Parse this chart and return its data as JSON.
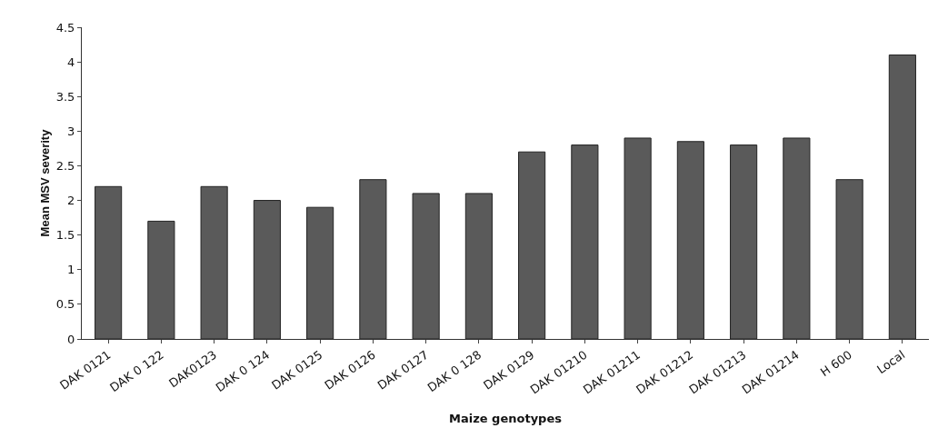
{
  "chart_data": {
    "type": "bar",
    "xlabel": "Maize genotypes",
    "ylabel": "Mean MSV severity",
    "categories": [
      "DAK 0121",
      "DAK 0 122",
      "DAK0123",
      "DAK 0 124",
      "DAK 0125",
      "DAK 0126",
      "DAK 0127",
      "DAK 0 128",
      "DAK 0129",
      "DAK 01210",
      "DAK 01211",
      "DAK 01212",
      "DAK 01213",
      "DAK 01214",
      "H 600",
      "Local"
    ],
    "values": [
      2.2,
      1.7,
      2.2,
      2.0,
      1.9,
      2.3,
      2.1,
      2.1,
      2.7,
      2.8,
      2.9,
      2.85,
      2.8,
      2.9,
      2.3,
      4.1
    ],
    "color": "#5a5a5a",
    "ylim": [
      0,
      4.5
    ],
    "yticks": [
      0,
      0.5,
      1,
      1.5,
      2,
      2.5,
      3,
      3.5,
      4,
      4.5
    ],
    "grid": false
  }
}
